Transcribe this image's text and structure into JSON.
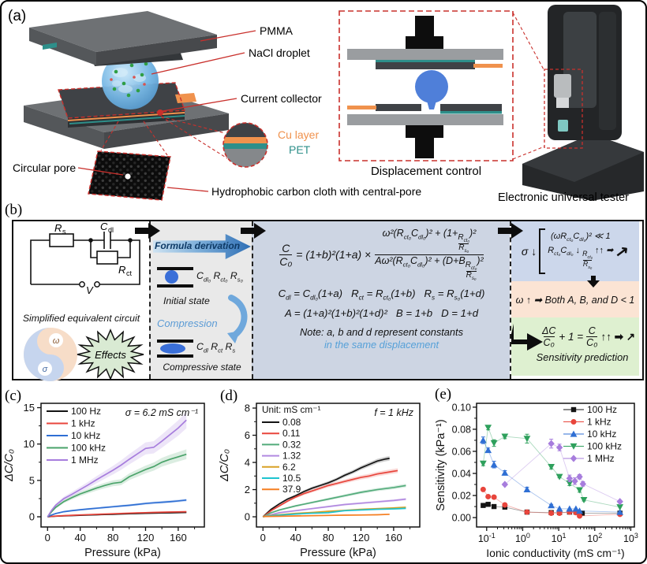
{
  "panel_a": {
    "label": "(a)",
    "labels": {
      "pmma": "PMMA",
      "nacl": "NaCl droplet",
      "collector": "Current collector",
      "cu": "Cu layer",
      "pet": "PET",
      "pore": "Circular pore",
      "cloth": "Hydrophobic carbon cloth with central-pore",
      "displacement": "Displacement control",
      "tester": "Electronic universal tester"
    },
    "colors": {
      "cu": "#f0924d",
      "pet": "#2e8f8a",
      "droplet": "#74b6e4",
      "leader": "#c9302c"
    }
  },
  "panel_b": {
    "label": "(b)",
    "circuit": {
      "r": "R",
      "s": "s",
      "c": "C",
      "dl": "dl",
      "ct": "ct",
      "v": "V",
      "caption": "Simplified equivalent circuit",
      "omega": "ω",
      "sigma": "σ",
      "effects": "Effects"
    },
    "derivation": {
      "title": "Formula derivation",
      "initial_params": "C<sub>dl₀</sub> R<sub>ct₀</sub> R<sub>s₀</sub>",
      "initial_label": "Initial state",
      "compression": "Compression",
      "compressed_params": "C<sub>dl</sub> R<sub>ct</sub> R<sub>s</sub>",
      "compressed_label": "Compressive state"
    },
    "equations": {
      "lhs_num": "C",
      "lhs_den": "C₀",
      "mid": "= (1+b)²(1+a) ×",
      "num": "ω²(R<sub>ct₀</sub>C<sub>dl₀</sub>)² + (1+<span class=\"fr\"><span>R<sub>ct₀</sub></span><span>R<sub>s₀</sub></span></span>)²",
      "den": "Aω²(R<sub>ct₀</sub>C<sub>dl₀</sub>)² + (D+B<span class=\"fr\"><span>R<sub>ct₀</sub></span><span>R<sub>s₀</sub></span></span>)²",
      "line2": "C<sub>dl</sub> = C<sub>dl₀</sub>(1+a)&nbsp;&nbsp;&nbsp;R<sub>ct</sub> = R<sub>ct₀</sub>(1+b)&nbsp;&nbsp;&nbsp;R<sub>s</sub> = R<sub>s₀</sub>(1+d)",
      "line3": "A = (1+a)²(1+b)²(1+d)²&nbsp;&nbsp;&nbsp;B = 1+b&nbsp;&nbsp;&nbsp;D = 1+d",
      "note1": "Note: a, b and d represent constants",
      "note2": "in the same displacement"
    },
    "prediction": {
      "sigma": "σ ↓",
      "cond1": "(ωR<sub>ct₀</sub>C<sub>dl₀</sub>)² ≪ 1",
      "cond2": "R<sub>ct₀</sub>C<sub>dl₀</sub> ↓ <span class=\"fr\"><span>R<sub>ct₀</sub></span><span>R<sub>s₀</sub></span></span> ↑↑ ➡",
      "up_arrow": "↗",
      "omega_line": "ω ↑ ➡ Both A, B, and D < 1",
      "res_dnum": "ΔC",
      "res_dden": "C₀",
      "res_mid": "+ 1 =",
      "res_cnum": "C",
      "res_cden": "C₀",
      "res_tail": "↑↑ ➡ ↗",
      "label": "Sensitivity prediction"
    }
  },
  "panel_labels": {
    "c": "(c)",
    "d": "(d)",
    "e": "(e)"
  },
  "chart_data": [
    {
      "type": "line",
      "panel": "c",
      "xlabel": "Pressure (kPa)",
      "ylabel": "ΔC/C₀",
      "annotation": "σ = 6.2 mS cm⁻¹",
      "xlim": [
        -8,
        192
      ],
      "ylim": [
        -1.4,
        15.6
      ],
      "xticks": [
        0,
        40,
        80,
        120,
        160
      ],
      "yticks": [
        0,
        5,
        10,
        15
      ],
      "x": [
        0,
        5,
        10,
        20,
        30,
        40,
        50,
        60,
        70,
        80,
        90,
        100,
        110,
        120,
        130,
        140,
        150,
        160,
        170
      ],
      "series": [
        {
          "name": "100 Hz",
          "color": "#141414",
          "band": 0.04,
          "values": [
            0,
            0.05,
            0.08,
            0.13,
            0.17,
            0.21,
            0.25,
            0.28,
            0.32,
            0.35,
            0.38,
            0.42,
            0.45,
            0.48,
            0.5,
            0.53,
            0.55,
            0.58,
            0.6
          ]
        },
        {
          "name": "1 kHz",
          "color": "#e8453c",
          "band": 0.05,
          "values": [
            0,
            0.06,
            0.1,
            0.16,
            0.21,
            0.26,
            0.3,
            0.34,
            0.38,
            0.42,
            0.46,
            0.5,
            0.54,
            0.57,
            0.6,
            0.63,
            0.66,
            0.68,
            0.7
          ]
        },
        {
          "name": "10 kHz",
          "color": "#2f6fd4",
          "band": 0.05,
          "values": [
            0,
            0.25,
            0.45,
            0.7,
            0.85,
            0.97,
            1.08,
            1.18,
            1.28,
            1.38,
            1.48,
            1.58,
            1.7,
            1.83,
            1.92,
            2.0,
            2.08,
            2.18,
            2.3
          ]
        },
        {
          "name": "100 kHz",
          "color": "#4aa36a",
          "band": 0.07,
          "values": [
            0,
            0.7,
            1.3,
            2.1,
            2.65,
            3.15,
            3.55,
            3.95,
            4.3,
            4.6,
            4.75,
            5.5,
            6.0,
            6.5,
            6.9,
            7.5,
            7.9,
            8.25,
            8.6
          ]
        },
        {
          "name": "1 MHz",
          "color": "#a77ddd",
          "band": 0.08,
          "values": [
            0,
            0.9,
            1.6,
            2.5,
            3.1,
            3.75,
            4.4,
            5.1,
            5.75,
            6.4,
            7.1,
            7.9,
            8.65,
            9.4,
            9.55,
            10.4,
            11.3,
            12.2,
            13.3
          ]
        }
      ]
    },
    {
      "type": "line",
      "panel": "d",
      "xlabel": "Pressure (kPa)",
      "ylabel": "ΔC/C₀",
      "annotation": "f = 1 kHz",
      "legend_title": "Unit: mS cm⁻¹",
      "xlim": [
        -8,
        192
      ],
      "ylim": [
        -0.75,
        8.35
      ],
      "xticks": [
        0,
        40,
        80,
        120,
        160
      ],
      "yticks": [
        0,
        2,
        4,
        6,
        8
      ],
      "series": [
        {
          "name": "0.08",
          "color": "#141414",
          "band": 0.03,
          "x": [
            0,
            10,
            20,
            30,
            40,
            50,
            60,
            70,
            80,
            90,
            100,
            110,
            120,
            130,
            140,
            150,
            155
          ],
          "values": [
            0,
            0.55,
            0.95,
            1.3,
            1.55,
            1.85,
            2.1,
            2.3,
            2.5,
            2.75,
            3.05,
            3.3,
            3.6,
            3.85,
            4.1,
            4.25,
            4.3
          ]
        },
        {
          "name": "0.11",
          "color": "#e8453c",
          "band": 0.04,
          "x": [
            0,
            10,
            20,
            30,
            40,
            50,
            60,
            70,
            80,
            90,
            100,
            110,
            120,
            130,
            140,
            150,
            160,
            165
          ],
          "values": [
            0,
            0.45,
            0.8,
            1.15,
            1.45,
            1.7,
            1.9,
            2.1,
            2.3,
            2.45,
            2.6,
            2.75,
            2.9,
            3.0,
            3.15,
            3.25,
            3.35,
            3.4
          ]
        },
        {
          "name": "0.32",
          "color": "#52ab7a",
          "band": 0.04,
          "x": [
            0,
            10,
            20,
            40,
            60,
            80,
            100,
            120,
            140,
            160,
            175
          ],
          "values": [
            0,
            0.3,
            0.5,
            0.8,
            1.05,
            1.3,
            1.55,
            1.8,
            2.0,
            2.15,
            2.3
          ]
        },
        {
          "name": "1.32",
          "color": "#b28ae0",
          "band": 0.04,
          "x": [
            0,
            10,
            20,
            40,
            60,
            80,
            100,
            120,
            140,
            160,
            175
          ],
          "values": [
            0,
            0.15,
            0.3,
            0.45,
            0.6,
            0.75,
            0.9,
            1.0,
            1.1,
            1.2,
            1.3
          ]
        },
        {
          "name": "6.2",
          "color": "#d8a125",
          "band": 0.04,
          "x": [
            0,
            10,
            20,
            40,
            60,
            80,
            100,
            120,
            140,
            160,
            175
          ],
          "values": [
            0,
            0.1,
            0.15,
            0.25,
            0.32,
            0.4,
            0.47,
            0.55,
            0.6,
            0.65,
            0.7
          ]
        },
        {
          "name": "10.5",
          "color": "#1ec4cf",
          "band": 0.04,
          "x": [
            0,
            10,
            20,
            40,
            60,
            80,
            100,
            120,
            140,
            160,
            175
          ],
          "values": [
            0,
            0.08,
            0.12,
            0.2,
            0.26,
            0.3,
            0.45,
            0.5,
            0.55,
            0.58,
            0.62
          ]
        },
        {
          "name": "37.9",
          "color": "#f57e20",
          "band": 0.03,
          "x": [
            0,
            20,
            40,
            60,
            80,
            100,
            120,
            140,
            155
          ],
          "values": [
            0.02,
            0.04,
            0.06,
            0.08,
            0.1,
            0.12,
            0.13,
            0.15,
            0.18
          ]
        }
      ]
    },
    {
      "type": "scatter",
      "panel": "e",
      "xlabel": "Ionic conductivity (mS cm⁻¹)",
      "ylabel": "Sensitivity (kPa⁻¹)",
      "xscale": "log",
      "xlim_exp": [
        -1.28,
        3.1
      ],
      "ylim": [
        -0.0085,
        0.1035
      ],
      "xtick_exponents": [
        -1,
        0,
        1,
        2,
        3
      ],
      "yticks": [
        0.0,
        0.02,
        0.04,
        0.06,
        0.08,
        0.1
      ],
      "series": [
        {
          "name": "100 Hz",
          "color": "#141414",
          "marker": "square",
          "points": [
            [
              0.08,
              0.011
            ],
            [
              0.11,
              0.012
            ],
            [
              0.16,
              0.01
            ],
            [
              0.32,
              0.0095
            ],
            [
              1.32,
              0.005
            ],
            [
              6.2,
              0.0045
            ],
            [
              10.5,
              0.0045
            ],
            [
              20,
              0.005
            ],
            [
              30,
              0.005
            ],
            [
              45,
              0.004
            ],
            [
              500,
              0.004
            ]
          ]
        },
        {
          "name": "1 kHz",
          "color": "#e8453c",
          "marker": "circle",
          "points": [
            [
              0.08,
              0.0255
            ],
            [
              0.11,
              0.019
            ],
            [
              0.16,
              0.0185
            ],
            [
              0.32,
              0.0115
            ],
            [
              1.32,
              0.005
            ],
            [
              6.2,
              0.004
            ],
            [
              10.5,
              0.004
            ],
            [
              20,
              0.005
            ],
            [
              30,
              0.0045
            ],
            [
              37.9,
              0.0015
            ],
            [
              500,
              0.003
            ]
          ]
        },
        {
          "name": "10 kHz",
          "color": "#2f6fd4",
          "marker": "triangle-up",
          "points": [
            [
              0.08,
              0.07,
              0.003
            ],
            [
              0.11,
              0.061,
              0.002
            ],
            [
              0.16,
              0.048,
              0.003
            ],
            [
              0.32,
              0.0405,
              0.002
            ],
            [
              1.32,
              0.0255,
              0.002
            ],
            [
              6.2,
              0.011,
              0.001
            ],
            [
              10.5,
              0.008,
              0
            ],
            [
              20,
              0.008,
              0
            ],
            [
              30,
              0.008,
              0
            ],
            [
              37.9,
              0.006,
              0
            ],
            [
              500,
              0.005,
              0
            ]
          ]
        },
        {
          "name": "100 kHz",
          "color": "#2ea05c",
          "marker": "triangle-down",
          "points": [
            [
              0.08,
              0.049,
              0.002
            ],
            [
              0.11,
              0.0815,
              0.002
            ],
            [
              0.16,
              0.0675,
              0.003
            ],
            [
              0.32,
              0.0735,
              0.002
            ],
            [
              1.32,
              0.0715,
              0.004
            ],
            [
              6.2,
              0.046,
              0.002
            ],
            [
              10.5,
              0.037,
              0.001
            ],
            [
              20,
              0.031,
              0.002
            ],
            [
              37.9,
              0.025,
              0.002
            ],
            [
              50,
              0.016,
              0.001
            ],
            [
              500,
              0.0095,
              0
            ]
          ]
        },
        {
          "name": "1 MHz",
          "color": "#a77ddd",
          "marker": "diamond",
          "points": [
            [
              0.32,
              0.03,
              0.001
            ],
            [
              6.2,
              0.067,
              0.004
            ],
            [
              10.5,
              0.0635,
              0.003
            ],
            [
              20,
              0.0355,
              0.003
            ],
            [
              28,
              0.033,
              0.003
            ],
            [
              37.9,
              0.037,
              0.002
            ],
            [
              47,
              0.0305,
              0.002
            ],
            [
              500,
              0.0145,
              0.001
            ]
          ]
        }
      ]
    }
  ]
}
